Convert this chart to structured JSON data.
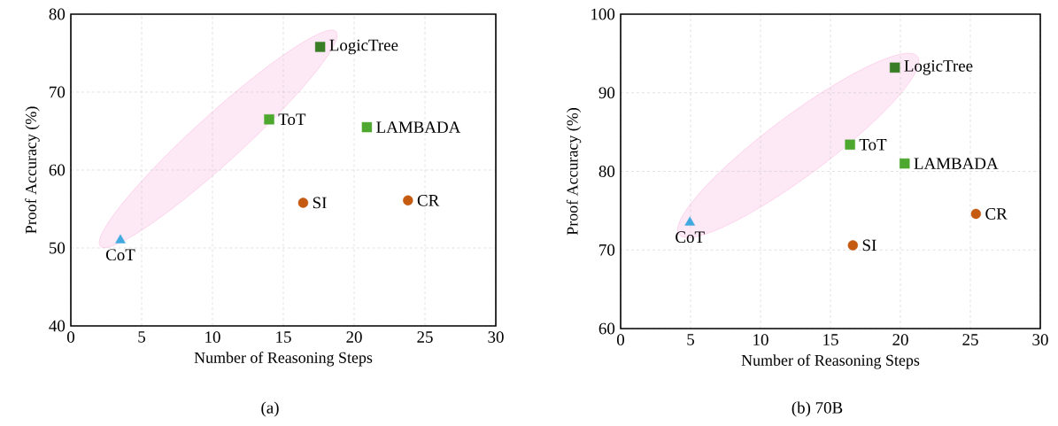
{
  "chart_data": [
    {
      "type": "scatter",
      "title": "(a)",
      "xlabel": "Number of Reasoning Steps",
      "ylabel": "Proof Accuracy (%)",
      "xlim": [
        0,
        30
      ],
      "ylim": [
        40,
        80
      ],
      "xticks": [
        0,
        5,
        10,
        15,
        20,
        25,
        30
      ],
      "yticks": [
        40,
        50,
        60,
        70,
        80
      ],
      "grid": true,
      "series": [
        {
          "name": "LogicTree",
          "color": "#3a7d27",
          "marker": "square",
          "x": [
            17.6
          ],
          "values": [
            75.8
          ]
        },
        {
          "name": "ToT",
          "color": "#4ea72e",
          "marker": "square",
          "x": [
            14.0
          ],
          "values": [
            66.5
          ]
        },
        {
          "name": "LAMBADA",
          "color": "#4ea72e",
          "marker": "square",
          "x": [
            20.9
          ],
          "values": [
            65.5
          ]
        },
        {
          "name": "SI",
          "color": "#c55a11",
          "marker": "circle",
          "x": [
            16.4
          ],
          "values": [
            55.8
          ]
        },
        {
          "name": "CR",
          "color": "#c55a11",
          "marker": "circle",
          "x": [
            23.8
          ],
          "values": [
            56.1
          ]
        },
        {
          "name": "CoT",
          "color": "#41a9e0",
          "marker": "triangle",
          "x": [
            3.5
          ],
          "values": [
            51.0
          ]
        }
      ]
    },
    {
      "type": "scatter",
      "title": "(b) 70B",
      "xlabel": "Number of Reasoning Steps",
      "ylabel": "Proof Accuracy (%)",
      "xlim": [
        0,
        30
      ],
      "ylim": [
        60,
        100
      ],
      "xticks": [
        0,
        5,
        10,
        15,
        20,
        25,
        30
      ],
      "yticks": [
        60,
        70,
        80,
        90,
        100
      ],
      "grid": true,
      "series": [
        {
          "name": "LogicTree",
          "color": "#3a7d27",
          "marker": "square",
          "x": [
            19.6
          ],
          "values": [
            93.2
          ]
        },
        {
          "name": "ToT",
          "color": "#4ea72e",
          "marker": "square",
          "x": [
            16.4
          ],
          "values": [
            83.4
          ]
        },
        {
          "name": "LAMBADA",
          "color": "#4ea72e",
          "marker": "square",
          "x": [
            20.3
          ],
          "values": [
            81.0
          ]
        },
        {
          "name": "SI",
          "color": "#c55a11",
          "marker": "circle",
          "x": [
            16.6
          ],
          "values": [
            70.6
          ]
        },
        {
          "name": "CR",
          "color": "#c55a11",
          "marker": "circle",
          "x": [
            25.4
          ],
          "values": [
            74.6
          ]
        },
        {
          "name": "CoT",
          "color": "#41a9e0",
          "marker": "triangle",
          "x": [
            4.95
          ],
          "values": [
            73.5
          ]
        }
      ]
    }
  ]
}
